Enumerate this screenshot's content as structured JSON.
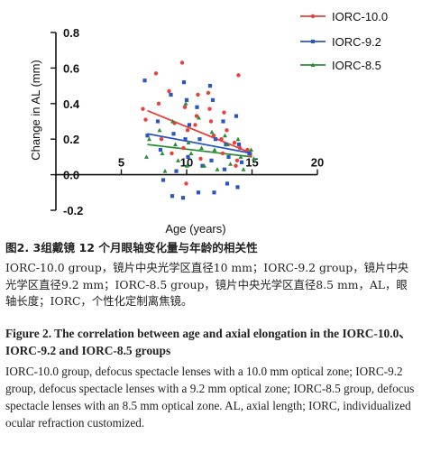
{
  "chart_data": {
    "type": "scatter",
    "xlabel": "Age (years)",
    "ylabel": "Change in AL (mm)",
    "xlim": [
      0,
      20
    ],
    "ylim": [
      -0.2,
      0.8
    ],
    "xticks": [
      "5",
      "10",
      "15",
      "20"
    ],
    "yticks": [
      "-0.2",
      "0.0",
      "0.2",
      "0.4",
      "0.6",
      "0.8"
    ],
    "grid": false,
    "legend_position": "top-right",
    "series": [
      {
        "name": "IORC-10.0",
        "color": "#e8413c",
        "marker": "circle",
        "trend": [
          [
            7,
            0.36
          ],
          [
            15,
            0.12
          ]
        ],
        "points": [
          [
            7,
            0.37
          ],
          [
            7,
            0.31
          ],
          [
            8,
            0.57
          ],
          [
            8,
            0.4
          ],
          [
            8,
            0.2
          ],
          [
            9,
            0.47
          ],
          [
            9,
            0.12
          ],
          [
            9,
            0.29
          ],
          [
            10,
            0.63
          ],
          [
            10,
            0.38
          ],
          [
            10,
            0.25
          ],
          [
            10,
            0.15
          ],
          [
            10,
            -0.05
          ],
          [
            11,
            0.28
          ],
          [
            11,
            0.45
          ],
          [
            11,
            0.09
          ],
          [
            11,
            0.33
          ],
          [
            12,
            0.46
          ],
          [
            12,
            0.3
          ],
          [
            12,
            0.22
          ],
          [
            12,
            0.37
          ],
          [
            13,
            0.2
          ],
          [
            13,
            0.35
          ],
          [
            13,
            0.25
          ],
          [
            13,
            0.12
          ],
          [
            14,
            0.18
          ],
          [
            14,
            0.08
          ],
          [
            14,
            0.15
          ],
          [
            14,
            0.05
          ],
          [
            14,
            0.56
          ],
          [
            15,
            0.14
          ],
          [
            15,
            0.11
          ]
        ]
      },
      {
        "name": "IORC-9.2",
        "color": "#2b56c1",
        "marker": "square",
        "trend": [
          [
            7,
            0.23
          ],
          [
            15,
            0.12
          ]
        ],
        "points": [
          [
            7,
            0.53
          ],
          [
            7,
            0.22
          ],
          [
            8,
            0.3
          ],
          [
            8,
            0.14
          ],
          [
            8,
            -0.03
          ],
          [
            9,
            0.45
          ],
          [
            9,
            0.23
          ],
          [
            9,
            0.02
          ],
          [
            9,
            -0.12
          ],
          [
            10,
            0.52
          ],
          [
            10,
            0.42
          ],
          [
            10,
            0.28
          ],
          [
            10,
            0.2
          ],
          [
            10,
            0.1
          ],
          [
            10,
            -0.13
          ],
          [
            11,
            0.38
          ],
          [
            11,
            0.2
          ],
          [
            11,
            0.05
          ],
          [
            11,
            -0.1
          ],
          [
            12,
            0.5
          ],
          [
            12,
            0.42
          ],
          [
            12,
            0.2
          ],
          [
            12,
            0.08
          ],
          [
            12,
            -0.1
          ],
          [
            13,
            0.3
          ],
          [
            13,
            0.17
          ],
          [
            13,
            0.1
          ],
          [
            13,
            0.03
          ],
          [
            13,
            -0.05
          ],
          [
            14,
            0.33
          ],
          [
            14,
            0.17
          ],
          [
            14,
            0.07
          ],
          [
            14,
            -0.07
          ],
          [
            15,
            0.12
          ]
        ]
      },
      {
        "name": "IORC-8.5",
        "color": "#2e8b3a",
        "marker": "triangle",
        "trend": [
          [
            7,
            0.17
          ],
          [
            15,
            0.1
          ]
        ],
        "points": [
          [
            7,
            0.1
          ],
          [
            7,
            0.2
          ],
          [
            8,
            0.25
          ],
          [
            8,
            0.12
          ],
          [
            8,
            0.02
          ],
          [
            9,
            0.3
          ],
          [
            9,
            0.17
          ],
          [
            9,
            0.08
          ],
          [
            10,
            0.4
          ],
          [
            10,
            0.18
          ],
          [
            10,
            0.12
          ],
          [
            10,
            0.05
          ],
          [
            11,
            0.32
          ],
          [
            11,
            0.15
          ],
          [
            11,
            0.05
          ],
          [
            12,
            0.24
          ],
          [
            12,
            0.14
          ],
          [
            12,
            0.03
          ],
          [
            13,
            0.22
          ],
          [
            13,
            0.17
          ],
          [
            13,
            0.06
          ],
          [
            14,
            0.2
          ],
          [
            14,
            0.1
          ],
          [
            14,
            0.03
          ],
          [
            15,
            0.14
          ],
          [
            15,
            0.09
          ]
        ]
      }
    ]
  },
  "caption": {
    "cn_title": "图2.   3组戴镜 12 个月眼轴变化量与年龄的相关性",
    "cn_body": "IORC-10.0 group，镜片中央光学区直径10 mm；IORC-9.2 group，镜片中央光学区直径9.2 mm；IORC-8.5 group，镜片中央光学区直径8.5 mm，AL，眼轴长度；IORC，个性化定制离焦镜。",
    "en_title": "Figure 2.   The correlation between age and axial elongation in the IORC-10.0、IORC-9.2 and IORC-8.5 groups",
    "en_body": "IORC-10.0 group, defocus spectacle lenses with a 10.0 mm optical zone; IORC-9.2 group, defocus spectacle lenses with a 9.2 mm optical zone; IORC-8.5 group, defocus spectacle lenses with an 8.5 mm optical zone. AL, axial length; IORC, individualized ocular refraction customized."
  }
}
